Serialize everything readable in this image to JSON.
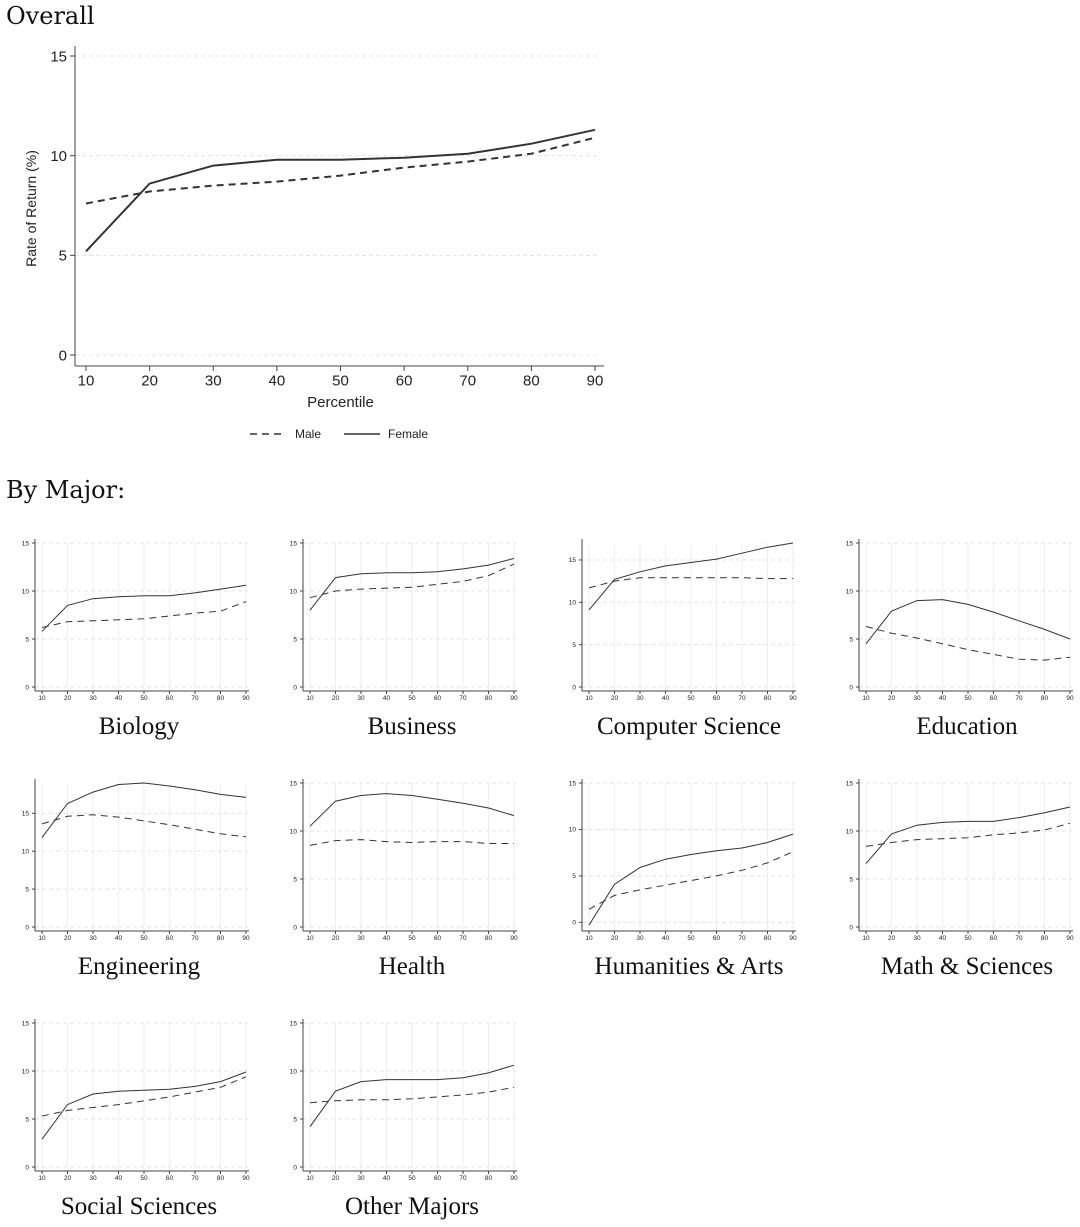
{
  "headings": {
    "overall": "Overall",
    "by_major": "By Major:"
  },
  "colors": {
    "line": "#333333",
    "axis": "#444444",
    "grid": "#e3e3e3"
  },
  "chart_data": [
    {
      "id": "overall",
      "type": "line",
      "title": "Overall",
      "xlabel": "Percentile",
      "ylabel": "Rate of Return (%)",
      "x": [
        10,
        20,
        30,
        40,
        50,
        60,
        70,
        80,
        90
      ],
      "xticks": [
        "10",
        "20",
        "30",
        "40",
        "50",
        "60",
        "70",
        "80",
        "90"
      ],
      "yticks": [
        "0",
        "5",
        "10",
        "15"
      ],
      "ylim": [
        0,
        15
      ],
      "grid": true,
      "legend": {
        "placement": "bottom-center",
        "entries": [
          "Male",
          "Female"
        ]
      },
      "series": [
        {
          "name": "Male",
          "style": "dashed",
          "values": [
            7.6,
            8.2,
            8.5,
            8.7,
            9.0,
            9.4,
            9.7,
            10.1,
            10.9
          ]
        },
        {
          "name": "Female",
          "style": "solid",
          "values": [
            5.2,
            8.6,
            9.5,
            9.8,
            9.8,
            9.9,
            10.1,
            10.6,
            11.3
          ]
        }
      ]
    },
    {
      "id": "biology",
      "type": "line",
      "title": "Biology",
      "x": [
        10,
        20,
        30,
        40,
        50,
        60,
        70,
        80,
        90
      ],
      "xticks": [
        "10",
        "20",
        "30",
        "40",
        "50",
        "60",
        "70",
        "80",
        "90"
      ],
      "yticks": [
        "0",
        "5",
        "10",
        "15"
      ],
      "ylim": [
        0,
        15
      ],
      "series": [
        {
          "name": "Male",
          "values": [
            6.2,
            6.8,
            6.9,
            7.0,
            7.1,
            7.4,
            7.7,
            7.9,
            8.9
          ]
        },
        {
          "name": "Female",
          "values": [
            5.8,
            8.5,
            9.2,
            9.4,
            9.5,
            9.5,
            9.8,
            10.2,
            10.6
          ]
        }
      ]
    },
    {
      "id": "business",
      "type": "line",
      "title": "Business",
      "x": [
        10,
        20,
        30,
        40,
        50,
        60,
        70,
        80,
        90
      ],
      "xticks": [
        "10",
        "20",
        "30",
        "40",
        "50",
        "60",
        "70",
        "80",
        "90"
      ],
      "yticks": [
        "0",
        "5",
        "10",
        "15"
      ],
      "ylim": [
        0,
        15
      ],
      "series": [
        {
          "name": "Male",
          "values": [
            9.3,
            10.0,
            10.2,
            10.3,
            10.4,
            10.7,
            11.0,
            11.6,
            12.8
          ]
        },
        {
          "name": "Female",
          "values": [
            8.0,
            11.4,
            11.8,
            11.9,
            11.9,
            12.0,
            12.3,
            12.7,
            13.4
          ]
        }
      ]
    },
    {
      "id": "computer_science",
      "type": "line",
      "title": "Computer Science",
      "x": [
        10,
        20,
        30,
        40,
        50,
        60,
        70,
        80,
        90
      ],
      "xticks": [
        "10",
        "20",
        "30",
        "40",
        "50",
        "60",
        "70",
        "80",
        "90"
      ],
      "yticks": [
        "0",
        "5",
        "10",
        "15"
      ],
      "ylim": [
        0,
        17
      ],
      "series": [
        {
          "name": "Male",
          "values": [
            11.7,
            12.5,
            12.9,
            12.9,
            12.9,
            12.9,
            12.9,
            12.8,
            12.8
          ]
        },
        {
          "name": "Female",
          "values": [
            9.1,
            12.7,
            13.6,
            14.3,
            14.7,
            15.1,
            15.8,
            16.5,
            17.0
          ]
        }
      ]
    },
    {
      "id": "education",
      "type": "line",
      "title": "Education",
      "x": [
        10,
        20,
        30,
        40,
        50,
        60,
        70,
        80,
        90
      ],
      "xticks": [
        "10",
        "20",
        "30",
        "40",
        "50",
        "60",
        "70",
        "80",
        "90"
      ],
      "yticks": [
        "0",
        "5",
        "10",
        "15"
      ],
      "ylim": [
        0,
        15
      ],
      "series": [
        {
          "name": "Male",
          "values": [
            6.3,
            5.6,
            5.1,
            4.5,
            3.9,
            3.4,
            2.9,
            2.8,
            3.1
          ]
        },
        {
          "name": "Female",
          "values": [
            4.5,
            7.9,
            9.0,
            9.1,
            8.6,
            7.8,
            6.9,
            6.0,
            5.0
          ]
        }
      ]
    },
    {
      "id": "engineering",
      "type": "line",
      "title": "Engineering",
      "x": [
        10,
        20,
        30,
        40,
        50,
        60,
        70,
        80,
        90
      ],
      "xticks": [
        "10",
        "20",
        "30",
        "40",
        "50",
        "60",
        "70",
        "80",
        "90"
      ],
      "yticks": [
        "0",
        "5",
        "10",
        "15"
      ],
      "ylim": [
        0,
        19
      ],
      "series": [
        {
          "name": "Male",
          "values": [
            13.6,
            14.6,
            14.8,
            14.5,
            14.0,
            13.5,
            12.9,
            12.3,
            11.9
          ]
        },
        {
          "name": "Female",
          "values": [
            11.8,
            16.3,
            17.8,
            18.8,
            19.0,
            18.6,
            18.1,
            17.5,
            17.1
          ]
        }
      ]
    },
    {
      "id": "health",
      "type": "line",
      "title": "Health",
      "x": [
        10,
        20,
        30,
        40,
        50,
        60,
        70,
        80,
        90
      ],
      "xticks": [
        "10",
        "20",
        "30",
        "40",
        "50",
        "60",
        "70",
        "80",
        "90"
      ],
      "yticks": [
        "0",
        "5",
        "10",
        "15"
      ],
      "ylim": [
        0,
        15
      ],
      "series": [
        {
          "name": "Male",
          "values": [
            8.5,
            9.0,
            9.1,
            8.9,
            8.8,
            8.9,
            8.9,
            8.7,
            8.7
          ]
        },
        {
          "name": "Female",
          "values": [
            10.5,
            13.1,
            13.7,
            13.9,
            13.7,
            13.3,
            12.9,
            12.4,
            11.6
          ]
        }
      ]
    },
    {
      "id": "humanities_arts",
      "type": "line",
      "title": "Humanities & Arts",
      "x": [
        10,
        20,
        30,
        40,
        50,
        60,
        70,
        80,
        90
      ],
      "xticks": [
        "10",
        "20",
        "30",
        "40",
        "50",
        "60",
        "70",
        "80",
        "90"
      ],
      "yticks": [
        "0",
        "5",
        "10",
        "15"
      ],
      "ylim": [
        -0.5,
        15
      ],
      "series": [
        {
          "name": "Male",
          "values": [
            1.4,
            2.9,
            3.5,
            4.0,
            4.5,
            5.0,
            5.6,
            6.4,
            7.6
          ]
        },
        {
          "name": "Female",
          "values": [
            -0.3,
            4.1,
            5.9,
            6.8,
            7.3,
            7.7,
            8.0,
            8.6,
            9.5
          ]
        }
      ]
    },
    {
      "id": "math_sciences",
      "type": "line",
      "title": "Math & Sciences",
      "x": [
        10,
        20,
        30,
        40,
        50,
        60,
        70,
        80,
        90
      ],
      "xticks": [
        "10",
        "20",
        "30",
        "40",
        "50",
        "60",
        "70",
        "80",
        "90"
      ],
      "yticks": [
        "0",
        "5",
        "10",
        "15"
      ],
      "ylim": [
        0,
        15
      ],
      "series": [
        {
          "name": "Male",
          "values": [
            8.4,
            8.8,
            9.1,
            9.2,
            9.3,
            9.6,
            9.8,
            10.1,
            10.8
          ]
        },
        {
          "name": "Female",
          "values": [
            6.6,
            9.7,
            10.6,
            10.9,
            11.0,
            11.0,
            11.4,
            11.9,
            12.5
          ]
        }
      ]
    },
    {
      "id": "social_sciences",
      "type": "line",
      "title": "Social Sciences",
      "x": [
        10,
        20,
        30,
        40,
        50,
        60,
        70,
        80,
        90
      ],
      "xticks": [
        "10",
        "20",
        "30",
        "40",
        "50",
        "60",
        "70",
        "80",
        "90"
      ],
      "yticks": [
        "0",
        "5",
        "10",
        "15"
      ],
      "ylim": [
        0,
        15
      ],
      "series": [
        {
          "name": "Male",
          "values": [
            5.3,
            5.9,
            6.2,
            6.5,
            6.9,
            7.3,
            7.8,
            8.3,
            9.4
          ]
        },
        {
          "name": "Female",
          "values": [
            2.9,
            6.5,
            7.6,
            7.9,
            8.0,
            8.1,
            8.4,
            8.9,
            9.9
          ]
        }
      ]
    },
    {
      "id": "other_majors",
      "type": "line",
      "title": "Other Majors",
      "x": [
        10,
        20,
        30,
        40,
        50,
        60,
        70,
        80,
        90
      ],
      "xticks": [
        "10",
        "20",
        "30",
        "40",
        "50",
        "60",
        "70",
        "80",
        "90"
      ],
      "yticks": [
        "0",
        "5",
        "10",
        "15"
      ],
      "ylim": [
        0,
        15
      ],
      "series": [
        {
          "name": "Male",
          "values": [
            6.7,
            6.9,
            7.0,
            7.0,
            7.1,
            7.3,
            7.5,
            7.8,
            8.3
          ]
        },
        {
          "name": "Female",
          "values": [
            4.2,
            7.9,
            8.9,
            9.1,
            9.1,
            9.1,
            9.3,
            9.8,
            10.6
          ]
        }
      ]
    }
  ]
}
